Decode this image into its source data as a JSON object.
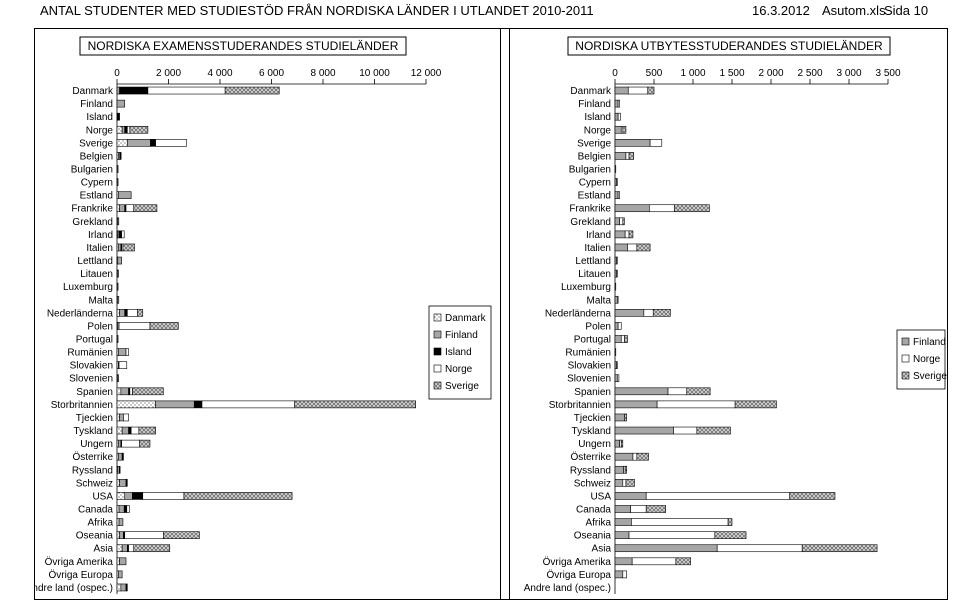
{
  "header": {
    "title": "ANTAL STUDENTER MED STUDIESTÖD FRÅN NORDISKA LÄNDER I UTLANDET 2010-2011",
    "date": "16.3.2012",
    "app": "Asutom.xls",
    "page": "Sida 10"
  },
  "colors": {
    "Danmark": "#ffffff",
    "Finland": "#a6a6a6",
    "Island": "#000000",
    "Norge": "#ffffff",
    "Sverige": "#c8c8c8"
  },
  "chart_data": [
    {
      "type": "bar",
      "orientation": "horizontal",
      "stacked": true,
      "title": "NORDISKA EXAMENSSTUDERANDES STUDIELÄNDER",
      "xlim": [
        0,
        12000
      ],
      "ticks": [
        "0",
        "2 000",
        "4 000",
        "6 000",
        "8 000",
        "10 000",
        "12 000"
      ],
      "categories": [
        "Danmark",
        "Finland",
        "Island",
        "Norge",
        "Sverige",
        "Belgien",
        "Bulgarien",
        "Cypern",
        "Estland",
        "Frankrike",
        "Grekland",
        "Irland",
        "Italien",
        "Lettland",
        "Litauen",
        "Luxemburg",
        "Malta",
        "Nederländerna",
        "Polen",
        "Portugal",
        "Rumänien",
        "Slovakien",
        "Slovenien",
        "Spanien",
        "Storbritannien",
        "Tjeckien",
        "Tyskland",
        "Ungern",
        "Österrike",
        "Ryssland",
        "Schweiz",
        "USA",
        "Canada",
        "Afrika",
        "Oseania",
        "Asia",
        "Övriga Amerika",
        "Övriga Europa",
        "Andre land (ospec.)"
      ],
      "series": [
        {
          "name": "Danmark",
          "values": [
            0,
            0,
            0,
            200,
            400,
            50,
            10,
            10,
            50,
            100,
            30,
            30,
            50,
            30,
            20,
            10,
            20,
            100,
            20,
            10,
            50,
            50,
            30,
            150,
            1500,
            100,
            200,
            50,
            50,
            30,
            100,
            300,
            80,
            80,
            100,
            200,
            100,
            50,
            150
          ]
        },
        {
          "name": "Finland",
          "values": [
            100,
            300,
            0,
            100,
            900,
            60,
            20,
            20,
            500,
            200,
            40,
            50,
            100,
            150,
            40,
            10,
            50,
            200,
            60,
            20,
            300,
            30,
            20,
            300,
            1500,
            150,
            250,
            100,
            150,
            60,
            250,
            300,
            200,
            150,
            150,
            200,
            250,
            150,
            200
          ]
        },
        {
          "name": "Island",
          "values": [
            1100,
            0,
            100,
            100,
            200,
            50,
            0,
            0,
            0,
            50,
            0,
            100,
            30,
            0,
            0,
            0,
            0,
            100,
            0,
            0,
            0,
            0,
            0,
            50,
            300,
            0,
            100,
            30,
            50,
            20,
            50,
            400,
            100,
            0,
            50,
            50,
            0,
            0,
            50
          ]
        },
        {
          "name": "Norge",
          "values": [
            3000,
            0,
            0,
            100,
            1200,
            0,
            0,
            0,
            0,
            300,
            0,
            100,
            50,
            0,
            0,
            0,
            0,
            400,
            1200,
            0,
            100,
            300,
            0,
            100,
            3600,
            200,
            300,
            700,
            0,
            0,
            0,
            1600,
            100,
            0,
            1500,
            200,
            0,
            0,
            0
          ]
        },
        {
          "name": "Sverige",
          "values": [
            2100,
            0,
            0,
            700,
            0,
            0,
            0,
            0,
            0,
            900,
            0,
            0,
            450,
            0,
            0,
            0,
            0,
            200,
            1100,
            0,
            0,
            0,
            0,
            1200,
            4700,
            0,
            650,
            400,
            0,
            0,
            0,
            4200,
            0,
            0,
            1400,
            1400,
            0,
            0,
            0
          ]
        }
      ],
      "legend": "right"
    },
    {
      "type": "bar",
      "orientation": "horizontal",
      "stacked": true,
      "title": "NORDISKA UTBYTESSTUDERANDES STUDIELÄNDER",
      "xlim": [
        0,
        3500
      ],
      "ticks": [
        "0",
        "500",
        "1 000",
        "1 500",
        "2 000",
        "2 500",
        "3 000",
        "3 500"
      ],
      "categories": [
        "Danmark",
        "Finland",
        "Island",
        "Norge",
        "Sverige",
        "Belgien",
        "Bulgarien",
        "Cypern",
        "Estland",
        "Frankrike",
        "Grekland",
        "Irland",
        "Italien",
        "Lettland",
        "Litauen",
        "Luxemburg",
        "Malta",
        "Nederländerna",
        "Polen",
        "Portugal",
        "Rumänien",
        "Slovakien",
        "Slovenien",
        "Spanien",
        "Storbritannien",
        "Tjeckien",
        "Tyskland",
        "Ungern",
        "Österrike",
        "Ryssland",
        "Schweiz",
        "USA",
        "Canada",
        "Afrika",
        "Oseania",
        "Asia",
        "Övriga Amerika",
        "Övriga Europa",
        "Andre land (ospec.)"
      ],
      "series": [
        {
          "name": "Finland",
          "values": [
            170,
            40,
            40,
            80,
            450,
            140,
            10,
            20,
            40,
            440,
            60,
            130,
            160,
            20,
            20,
            10,
            30,
            370,
            40,
            80,
            10,
            20,
            30,
            680,
            540,
            120,
            750,
            60,
            230,
            110,
            100,
            400,
            200,
            210,
            180,
            1310,
            220,
            100,
            0
          ]
        },
        {
          "name": "Norge",
          "values": [
            250,
            20,
            30,
            20,
            150,
            40,
            0,
            10,
            20,
            320,
            40,
            50,
            120,
            10,
            10,
            0,
            10,
            120,
            40,
            40,
            0,
            10,
            20,
            240,
            1000,
            0,
            300,
            20,
            50,
            20,
            40,
            1840,
            200,
            1240,
            1100,
            1090,
            560,
            50,
            0
          ]
        },
        {
          "name": "Sverige",
          "values": [
            80,
            0,
            0,
            40,
            0,
            60,
            0,
            0,
            0,
            450,
            20,
            50,
            170,
            0,
            0,
            0,
            0,
            220,
            0,
            40,
            0,
            0,
            0,
            300,
            530,
            30,
            430,
            20,
            150,
            20,
            110,
            580,
            250,
            50,
            400,
            960,
            190,
            0,
            0
          ]
        }
      ],
      "legend": "right"
    }
  ]
}
